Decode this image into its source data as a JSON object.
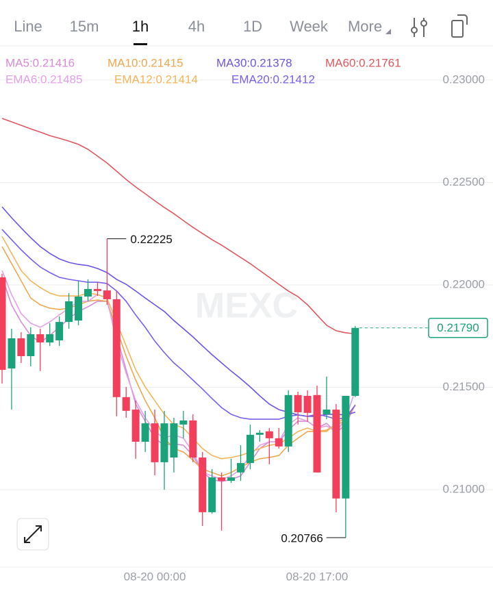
{
  "tabs": [
    "Line",
    "15m",
    "1h",
    "4h",
    "1D",
    "Week",
    "More"
  ],
  "active_tab": 2,
  "chart_data": {
    "type": "candlestick",
    "watermark": "MEXC",
    "categories": [
      null,
      null,
      null,
      null,
      null,
      null,
      null,
      null,
      null,
      null,
      null,
      null,
      null,
      null,
      null,
      null,
      "08-20 00:00",
      null,
      null,
      null,
      null,
      null,
      null,
      null,
      null,
      null,
      null,
      null,
      null,
      null,
      null,
      null,
      null,
      "08-20 17:00",
      null,
      null,
      null,
      null
    ],
    "open": [
      0.22037,
      0.21592,
      0.21739,
      0.21652,
      0.21759,
      0.21719,
      0.21729,
      0.21819,
      0.21826,
      0.21943,
      0.2198,
      0.21973,
      0.2193,
      0.21452,
      0.21391,
      0.21234,
      0.21324,
      0.21134,
      0.21157,
      0.21318,
      0.21338,
      0.21157,
      0.2089,
      0.2106,
      0.21043,
      0.21084,
      0.2113,
      0.21268,
      0.21285,
      0.21251,
      0.21211,
      0.21462,
      0.21458,
      0.21462,
      0.21368,
      0.21391,
      0.20957,
      0.21458
    ],
    "high": [
      0.22054,
      0.21786,
      0.21769,
      0.21793,
      0.21786,
      0.21813,
      0.21846,
      0.2196,
      0.2202,
      0.22027,
      0.22013,
      0.22225,
      0.2197,
      0.21502,
      0.21435,
      0.21385,
      0.21391,
      0.21385,
      0.21351,
      0.21385,
      0.21368,
      0.21184,
      0.211,
      0.21084,
      0.21151,
      0.21217,
      0.21318,
      0.21291,
      0.21301,
      0.21301,
      0.21485,
      0.21478,
      0.21485,
      0.21508,
      0.21552,
      0.21418,
      0.21458,
      0.21799
    ],
    "low": [
      0.21518,
      0.21391,
      0.21619,
      0.21602,
      0.21579,
      0.21702,
      0.21702,
      0.21786,
      0.21803,
      0.2192,
      0.21946,
      0.21903,
      0.21358,
      0.21351,
      0.21151,
      0.21184,
      0.2107,
      0.21,
      0.21084,
      0.21251,
      0.21134,
      0.20823,
      0.20883,
      0.208,
      0.21033,
      0.21043,
      0.211,
      0.21234,
      0.21124,
      0.21201,
      0.21184,
      0.21318,
      0.21331,
      0.21084,
      0.21344,
      0.2089,
      0.20766,
      0.21452
    ],
    "close": [
      0.21585,
      0.21739,
      0.21652,
      0.21759,
      0.21719,
      0.21759,
      0.21819,
      0.2192,
      0.21943,
      0.2198,
      0.2197,
      0.2193,
      0.21452,
      0.21385,
      0.21234,
      0.21324,
      0.21134,
      0.21324,
      0.21324,
      0.21338,
      0.21157,
      0.2089,
      0.2106,
      0.21043,
      0.2106,
      0.2113,
      0.21268,
      0.21278,
      0.21251,
      0.21211,
      0.21462,
      0.21378,
      0.21375,
      0.21084,
      0.21391,
      0.20957,
      0.21458,
      0.2179
    ],
    "up_color": "#1aa37a",
    "down_color": "#f23f5c",
    "ylim": [
      0.20622,
      0.23167
    ],
    "yticks": [
      {
        "value": 0.21,
        "label": "0.21000"
      },
      {
        "value": 0.215,
        "label": "0.21500"
      },
      {
        "value": 0.22,
        "label": "0.22000"
      },
      {
        "value": 0.225,
        "label": "0.22500"
      },
      {
        "value": 0.23,
        "label": "0.23000"
      }
    ],
    "grid": true,
    "high_label_index": 11,
    "low_label_index": 36,
    "last_price": {
      "value": 0.2179,
      "label": "0.21790"
    },
    "series": [
      {
        "name": "MA5:0.21416",
        "color": "#d98ad8",
        "values": [
          0.22037,
          0.21903,
          0.21819,
          0.21753,
          0.21719,
          0.21753,
          0.21793,
          0.21836,
          0.2187,
          0.21893,
          0.2192,
          0.2192,
          0.21753,
          0.21585,
          0.21418,
          0.21334,
          0.21251,
          0.21217,
          0.21224,
          0.21217,
          0.21167,
          0.21084,
          0.2105,
          0.2104,
          0.2105,
          0.21067,
          0.21134,
          0.21201,
          0.21234,
          0.21234,
          0.21291,
          0.21334,
          0.21334,
          0.21301,
          0.21324,
          0.21278,
          0.21318,
          0.21416
        ]
      },
      {
        "name": "MA10:0.21415",
        "color": "#f0a64e",
        "values": [
          0.22187,
          0.22104,
          0.2202,
          0.21936,
          0.21903,
          0.21886,
          0.2188,
          0.21886,
          0.21903,
          0.2192,
          0.21926,
          0.2192,
          0.21786,
          0.21652,
          0.21535,
          0.21435,
          0.21351,
          0.21251,
          0.21201,
          0.21184,
          0.21144,
          0.211,
          0.21084,
          0.21067,
          0.21084,
          0.2111,
          0.21134,
          0.21151,
          0.21157,
          0.21167,
          0.21217,
          0.21251,
          0.21284,
          0.21284,
          0.21291,
          0.21318,
          0.21334,
          0.21415
        ]
      },
      {
        "name": "MA30:0.21378",
        "color": "#6b54e6",
        "values": [
          0.22381,
          0.22328,
          0.22278,
          0.22231,
          0.22187,
          0.22154,
          0.22127,
          0.2211,
          0.221,
          0.22094,
          0.2208,
          0.2206,
          0.22027,
          0.22003,
          0.2197,
          0.21936,
          0.21903,
          0.2187,
          0.21826,
          0.21786,
          0.21746,
          0.21702,
          0.21659,
          0.21619,
          0.21579,
          0.21542,
          0.21502,
          0.21458,
          0.21418,
          0.21391,
          0.21378,
          0.21365,
          0.21358,
          0.21358,
          0.21368,
          0.21368,
          0.21365,
          0.21378
        ]
      },
      {
        "name": "MA60:0.21761",
        "color": "#e0575f",
        "values": [
          0.22813,
          0.22796,
          0.22779,
          0.22762,
          0.22746,
          0.22729,
          0.22716,
          0.22702,
          0.22686,
          0.22662,
          0.22629,
          0.22595,
          0.22555,
          0.22515,
          0.22478,
          0.22445,
          0.22411,
          0.22378,
          0.22348,
          0.22314,
          0.22281,
          0.22251,
          0.22221,
          0.22194,
          0.22164,
          0.22134,
          0.22104,
          0.2207,
          0.22037,
          0.22003,
          0.2197,
          0.21943,
          0.21903,
          0.21853,
          0.21803,
          0.21776,
          0.21766,
          0.21761
        ]
      },
      {
        "name": "EMA6:0.21485",
        "color": "#e3a0e6",
        "values": [
          0.2207,
          0.21953,
          0.2186,
          0.21813,
          0.21793,
          0.21819,
          0.21853,
          0.21886,
          0.2192,
          0.2192,
          0.21953,
          0.21936,
          0.21719,
          0.21569,
          0.21435,
          0.21351,
          0.21284,
          0.21251,
          0.21268,
          0.21251,
          0.21184,
          0.21084,
          0.21067,
          0.2105,
          0.21067,
          0.211,
          0.21167,
          0.21217,
          0.21234,
          0.21234,
          0.21318,
          0.21351,
          0.21334,
          0.21301,
          0.21311,
          0.21284,
          0.21344,
          0.21485
        ]
      },
      {
        "name": "EMA12:0.21414",
        "color": "#f5b45a",
        "values": [
          0.22237,
          0.22154,
          0.2207,
          0.2202,
          0.21987,
          0.2196,
          0.21946,
          0.21946,
          0.21946,
          0.2196,
          0.21953,
          0.21936,
          0.21819,
          0.21702,
          0.21585,
          0.21502,
          0.21435,
          0.21368,
          0.21318,
          0.21301,
          0.21251,
          0.21201,
          0.21167,
          0.21151,
          0.21157,
          0.21167,
          0.21184,
          0.21201,
          0.21217,
          0.21224,
          0.21251,
          0.21284,
          0.21301,
          0.21284,
          0.21284,
          0.21324,
          0.21351,
          0.21414
        ]
      },
      {
        "name": "EMA20:0.21412",
        "color": "#7a5ef0",
        "values": [
          0.22271,
          0.22221,
          0.22171,
          0.22127,
          0.22087,
          0.2206,
          0.22037,
          0.22027,
          0.2202,
          0.22013,
          0.22013,
          0.22007,
          0.2197,
          0.2192,
          0.21853,
          0.21793,
          0.21726,
          0.21669,
          0.21619,
          0.21579,
          0.21535,
          0.21492,
          0.21445,
          0.21401,
          0.21368,
          0.21351,
          0.21344,
          0.21344,
          0.21344,
          0.21344,
          0.21358,
          0.21365,
          0.21358,
          0.21368,
          0.21358,
          0.21344,
          0.21351,
          0.21412
        ]
      }
    ]
  }
}
